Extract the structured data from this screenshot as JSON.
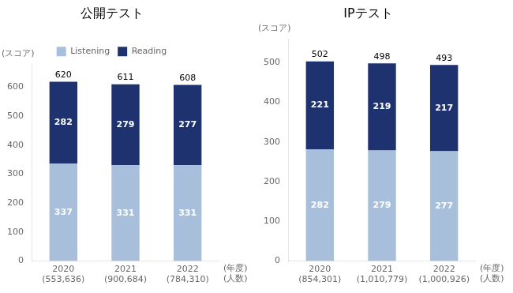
{
  "chart_data": [
    {
      "type": "bar",
      "stacked": true,
      "title": "公開テスト",
      "ylabel": "(スコア)",
      "categories": [
        "2020\n(553,636)",
        "2021\n(900,684)",
        "2022\n(784,310)"
      ],
      "series": [
        {
          "name": "Listening",
          "color": "#a8bfdb",
          "values": [
            337,
            331,
            331
          ]
        },
        {
          "name": "Reading",
          "color": "#1e3270",
          "values": [
            282,
            279,
            277
          ]
        }
      ],
      "totals": [
        620,
        611,
        608
      ],
      "ylim": [
        0,
        680
      ],
      "yticks": [
        0,
        100,
        200,
        300,
        400,
        500,
        600
      ],
      "grid": false,
      "data_labels": true,
      "legend": "top",
      "annotations": [
        "(年度)",
        "(人数)"
      ]
    },
    {
      "type": "bar",
      "stacked": true,
      "title": "IPテスト",
      "ylabel": "(スコア)",
      "categories": [
        "2020\n(854,301)",
        "2021\n(1,010,779)",
        "2022\n(1,000,926)"
      ],
      "series": [
        {
          "name": "Listening",
          "color": "#a8bfdb",
          "values": [
            282,
            279,
            277
          ]
        },
        {
          "name": "Reading",
          "color": "#1e3270",
          "values": [
            221,
            219,
            217
          ]
        }
      ],
      "totals": [
        502,
        498,
        493
      ],
      "ylim": [
        0,
        560
      ],
      "yticks": [
        0,
        100,
        200,
        300,
        400,
        500
      ],
      "grid": false,
      "data_labels": true,
      "annotations": [
        "(年度)",
        "(人数)"
      ]
    }
  ]
}
